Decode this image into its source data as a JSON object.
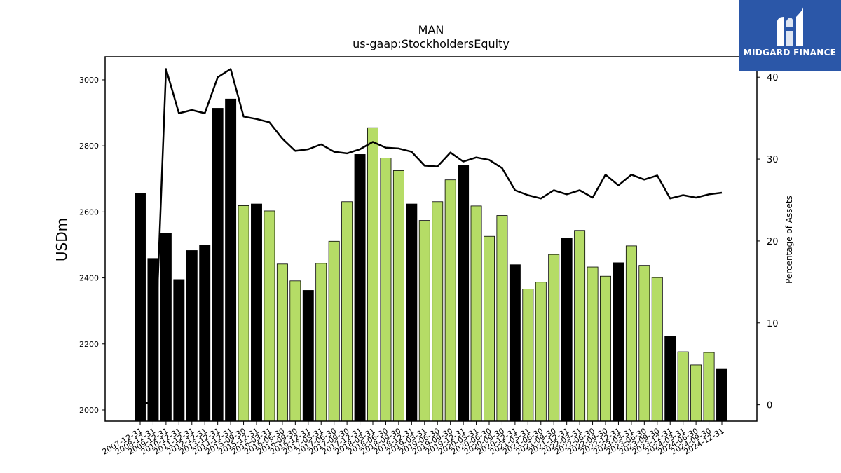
{
  "chart_data": {
    "type": "bar",
    "title": "MAN",
    "subtitle": "us-gaap:StockholdersEquity",
    "ylabel": "USDm",
    "y2label": "Percentage of Assets",
    "ylim": [
      1966,
      3070
    ],
    "y2lim": [
      -2,
      42.5
    ],
    "yticks": [
      2000,
      2200,
      2400,
      2600,
      2800,
      3000
    ],
    "y2ticks": [
      0,
      10,
      20,
      30,
      40
    ],
    "colors": {
      "annual": "#000000",
      "quarterly": "#b5dc66",
      "line": "#000000"
    },
    "categories": [
      "2007-12-31",
      "2008-12-31",
      "2009-12-31",
      "2010-12-31",
      "2011-12-31",
      "2012-12-31",
      "2013-12-31",
      "2014-12-31",
      "2015-09-30",
      "2015-12-31",
      "2016-03-31",
      "2016-06-30",
      "2016-09-30",
      "2016-12-31",
      "2017-03-31",
      "2017-06-30",
      "2017-09-30",
      "2017-12-31",
      "2018-03-31",
      "2018-06-30",
      "2018-09-30",
      "2018-12-31",
      "2019-03-31",
      "2019-06-30",
      "2019-09-30",
      "2019-12-31",
      "2020-03-31",
      "2020-06-30",
      "2020-09-30",
      "2020-12-31",
      "2021-03-31",
      "2021-06-30",
      "2021-09-30",
      "2021-12-31",
      "2022-03-31",
      "2022-06-30",
      "2022-09-30",
      "2022-12-31",
      "2023-03-31",
      "2023-06-30",
      "2023-09-30",
      "2023-12-31",
      "2024-03-31",
      "2024-06-30",
      "2024-09-30",
      "2024-12-31"
    ],
    "tick_labels": [
      "2007-12-31",
      "2008-12-31",
      "2009-12-31",
      "2010-12-31",
      "2011-12-31",
      "2012-12-31",
      "2013-12-31",
      "2014-12-31",
      "2015-09-30",
      "2015-12-31",
      "2016-03-31",
      "2016-06-30",
      "2016-09-30",
      "2016-12-31",
      "2017-03-31",
      "2017-06-30",
      "2017-09-30",
      "2017-12-31",
      "2018-03-31",
      "2018-06-30",
      "2018-09-30",
      "2018-12-31",
      "2019-03-31",
      "2019-06-30",
      "2019-09-30",
      "2019-12-31",
      "2020-03-31",
      "2020-06-30",
      "2020-09-30",
      "2020-12-31",
      "2021-03-31",
      "2021-06-30",
      "2021-09-30",
      "2021-12-31",
      "2022-03-31",
      "2022-06-30",
      "2022-09-30",
      "2022-12-31",
      "2023-03-31",
      "2023-06-30",
      "2023-09-30",
      "2023-12-31",
      "2024-03-31",
      "2024-06-30",
      "2024-09-30",
      "2024-12-31"
    ],
    "period": [
      "A",
      "A",
      "A",
      "A",
      "A",
      "A",
      "A",
      "A",
      "Q",
      "A",
      "Q",
      "Q",
      "Q",
      "A",
      "Q",
      "Q",
      "Q",
      "A",
      "Q",
      "Q",
      "Q",
      "A",
      "Q",
      "Q",
      "Q",
      "A",
      "Q",
      "Q",
      "Q",
      "A",
      "Q",
      "Q",
      "Q",
      "A",
      "Q",
      "Q",
      "Q",
      "A",
      "Q",
      "Q",
      "Q",
      "A",
      "Q",
      "Q",
      "Q",
      "A"
    ],
    "series": [
      {
        "values": [
          2656,
          2459,
          2535,
          2395,
          2483,
          2499,
          2914,
          2942,
          2619,
          2624,
          2603,
          2442,
          2391,
          2362,
          2444,
          2511,
          2631,
          2774,
          2855,
          2763,
          2725,
          2624,
          2574,
          2631,
          2697,
          2742,
          2618,
          2526,
          2589,
          2440,
          2366,
          2387,
          2471,
          2520,
          2544,
          2433,
          2405,
          2446,
          2497,
          2438,
          2401,
          2223,
          2176,
          2136,
          2174,
          2125
        ]
      },
      {
        "type": "line",
        "values": [
          0.2,
          0.2,
          41,
          35.6,
          36,
          35.6,
          40,
          41,
          35.2,
          34.9,
          34.5,
          32.5,
          31,
          31.2,
          31.8,
          30.9,
          30.7,
          31.2,
          32.1,
          31.4,
          31.3,
          30.9,
          29.2,
          29.1,
          30.8,
          29.7,
          30.2,
          29.9,
          28.9,
          26.2,
          25.6,
          25.2,
          26.2,
          25.7,
          26.2,
          25.3,
          28.1,
          26.8,
          28.1,
          27.5,
          28,
          25.2,
          25.6,
          25.3,
          25.7,
          25.9
        ]
      }
    ]
  },
  "branding": {
    "logo_text": "MIDGARD FINANCE",
    "logo_icon": "midgard-m-icon"
  }
}
